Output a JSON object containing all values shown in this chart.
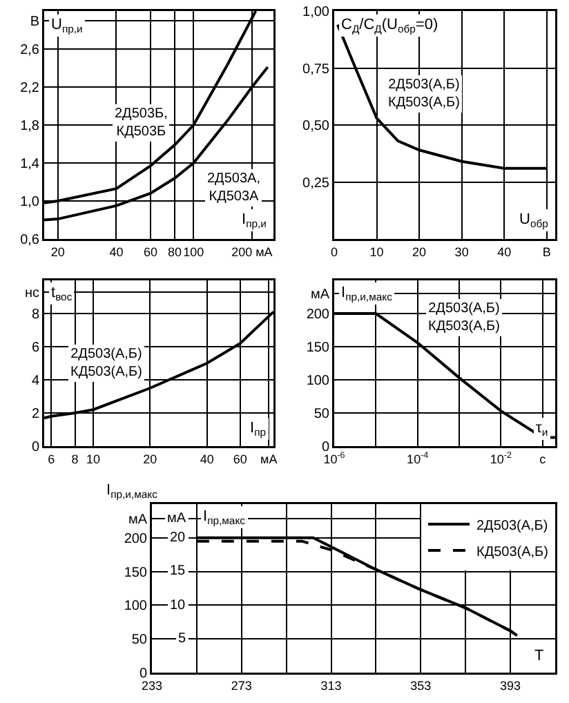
{
  "chart_data": [
    {
      "type": "line",
      "ylabel": "U$_{пр,и}$",
      "xlabel": "I$_{пр,и}$",
      "log": "x",
      "xlim": [
        17,
        258
      ],
      "xticks": [
        20,
        40,
        60,
        80,
        100,
        {
          "value": 200,
          "label": "200 мА"
        }
      ],
      "ylim": [
        0.6,
        3.0
      ],
      "yticks": [
        {
          "value": 0.6,
          "label": "0,6"
        },
        {
          "value": 1.0,
          "label": "1,0"
        },
        {
          "value": 1.4,
          "label": "1,4"
        },
        {
          "value": 1.8,
          "label": "1,8"
        },
        {
          "value": 2.2,
          "label": "2,2"
        },
        {
          "value": 2.6,
          "label": "2,6"
        },
        {
          "value": 2.9,
          "label": "В"
        }
      ],
      "grid": true,
      "legend": false,
      "marker": "none",
      "line_style": "solid",
      "series": [
        {
          "name": "2Д503Б,\nКД503Б",
          "color": "#000000",
          "x": [
            17,
            20,
            40,
            60,
            80,
            100,
            150,
            209
          ],
          "values": [
            0.98,
            1.0,
            1.13,
            1.37,
            1.59,
            1.8,
            2.44,
            3.0
          ]
        },
        {
          "name": "2Д503А,\nКД503А",
          "color": "#000000",
          "x": [
            17,
            20,
            40,
            60,
            80,
            100,
            150,
            200,
            241
          ],
          "values": [
            0.8,
            0.81,
            0.95,
            1.08,
            1.24,
            1.4,
            1.85,
            2.2,
            2.41
          ]
        }
      ]
    },
    {
      "type": "line",
      "ylabel": "C$_{Д}$/C$_{Д}$(U$_{обр}$=0)",
      "xlabel": "U$_{обр}$",
      "xlim": [
        0,
        52
      ],
      "xticks": [
        0,
        10,
        20,
        30,
        40,
        {
          "value": 50,
          "label": "В"
        }
      ],
      "ylim": [
        0,
        1
      ],
      "yticks": [
        {
          "value": 0,
          "label": null
        },
        {
          "value": 0.25,
          "label": "0,25"
        },
        {
          "value": 0.5,
          "label": "0,50"
        },
        {
          "value": 0.75,
          "label": "0,75"
        },
        {
          "value": 1,
          "label": "1,00"
        }
      ],
      "grid": true,
      "legend": false,
      "marker": "none",
      "line_style": "solid",
      "series": [
        {
          "name": "2Д503(А,Б)\nКД503(А,Б)",
          "color": "#000000",
          "x": [
            0.8,
            5,
            10,
            15,
            20,
            30,
            40,
            50
          ],
          "values": [
            0.94,
            0.75,
            0.53,
            0.43,
            0.39,
            0.34,
            0.31,
            0.31
          ]
        }
      ]
    },
    {
      "type": "line",
      "ylabel": "t$_{вос}$",
      "xlabel": "I$_{пр}$",
      "log": "x",
      "xlim": [
        5.5,
        90
      ],
      "xticks": [
        6,
        8,
        10,
        20,
        40,
        60,
        {
          "value": 85,
          "label": "мА"
        }
      ],
      "ylim": [
        0,
        10
      ],
      "yticks": [
        0,
        2,
        4,
        6,
        8,
        {
          "value": 9.3,
          "label": "нс"
        }
      ],
      "grid": true,
      "legend": false,
      "marker": "none",
      "line_style": "solid",
      "series": [
        {
          "name": "2Д503(А,Б)\nКД503(А,Б)",
          "color": "#000000",
          "x": [
            5.5,
            6,
            8,
            10,
            20,
            40,
            60,
            90
          ],
          "values": [
            1.7,
            1.8,
            2.0,
            2.2,
            3.5,
            5.0,
            6.2,
            8.1
          ]
        }
      ]
    },
    {
      "type": "line",
      "ylabel": "I$_{пр,и,макс}$",
      "xlabel": "τ$_{и}$",
      "log": "x",
      "xlim": [
        1e-06,
        0.2
      ],
      "xticks": [
        {
          "value": 1e-06,
          "label": "10$^{-6}$"
        },
        {
          "value": 1e-05,
          "label": null
        },
        {
          "value": 0.0001,
          "label": "10$^{-4}$"
        },
        {
          "value": 0.001,
          "label": null
        },
        {
          "value": 0.01,
          "label": "10$^{-2}$"
        },
        {
          "value": 0.1,
          "label": "с"
        }
      ],
      "ylim": [
        0,
        250
      ],
      "yticks": [
        0,
        50,
        100,
        150,
        200,
        {
          "value": 230,
          "label": "мА"
        }
      ],
      "grid": true,
      "legend": false,
      "marker": "none",
      "line_style": "solid",
      "series": [
        {
          "name": "2Д503(А,Б)\nКД503(А,Б)",
          "color": "#000000",
          "x": [
            1e-06,
            1e-05,
            0.0001,
            0.001,
            0.01,
            0.1,
            0.2
          ],
          "values": [
            200,
            200,
            156,
            103,
            53,
            13,
            13
          ]
        }
      ]
    },
    {
      "type": "line",
      "ylabel": "I$_{пр,и,макс}$",
      "y2label": "I$_{пр,макс}$",
      "xlabel": "T",
      "xlim": [
        233,
        413
      ],
      "xticks": [
        233,
        {
          "value": 253,
          "label": null
        },
        273,
        {
          "value": 293,
          "label": null
        },
        313,
        {
          "value": 333,
          "label": null
        },
        353,
        {
          "value": 373,
          "label": null
        },
        393,
        {
          "value": 413,
          "label": null
        }
      ],
      "ylim": [
        0,
        250
      ],
      "yticks": [
        0,
        50,
        100,
        150,
        200,
        {
          "value": 228,
          "label": "мА"
        }
      ],
      "y2lim": [
        0,
        25
      ],
      "y2ticks": [
        5,
        10,
        15,
        20,
        {
          "value": 22.8,
          "label": "мА"
        }
      ],
      "grid": true,
      "legend": "top right",
      "marker": "none",
      "series": [
        {
          "name": "2Д503(А,Б)",
          "color": "#000000",
          "line_style": "solid",
          "x": [
            253,
            305,
            333,
            353,
            373,
            393,
            396
          ],
          "values": [
            200,
            200,
            153,
            123,
            96,
            62,
            55
          ]
        },
        {
          "name": "КД503(А,Б)",
          "color": "#000000",
          "line_style": "dashed",
          "x": [
            253,
            300,
            313,
            333,
            353,
            373,
            393,
            396
          ],
          "values": [
            195,
            195,
            182,
            153,
            123,
            96,
            62,
            55
          ]
        }
      ]
    }
  ]
}
